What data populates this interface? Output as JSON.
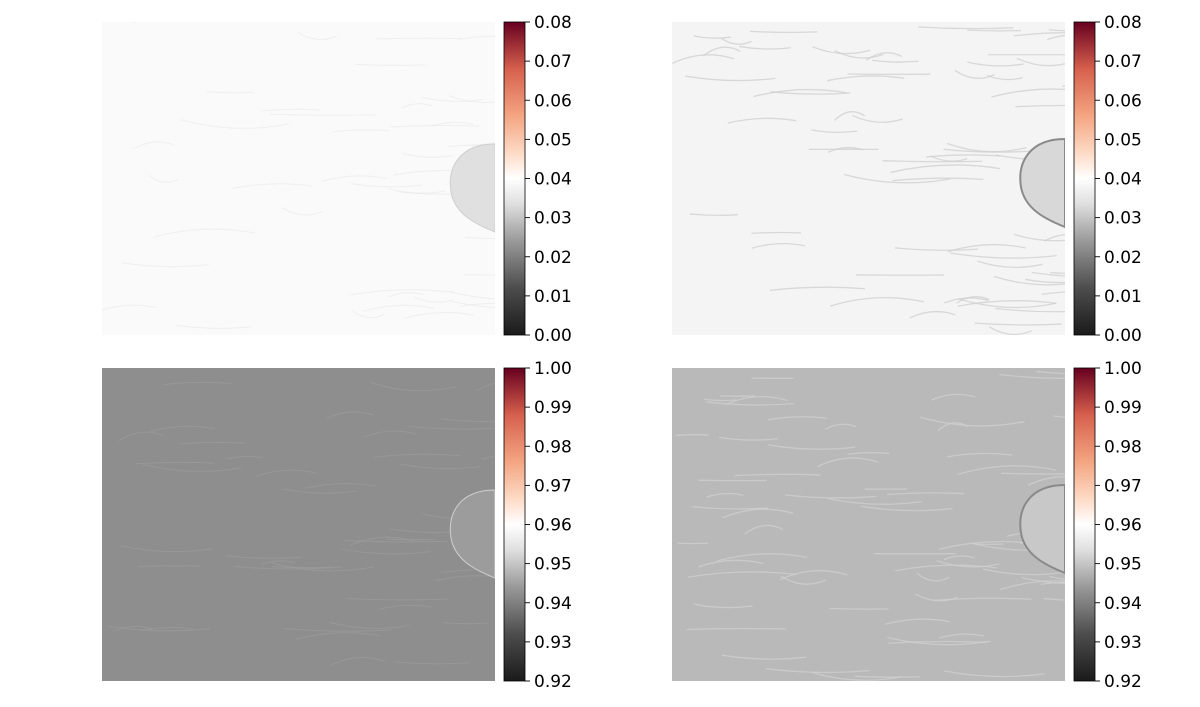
{
  "chart_data": [
    {
      "type": "heatmap",
      "colormap": "RdGy_r",
      "colorbar": {
        "ticks": [
          "0.00",
          "0.01",
          "0.02",
          "0.03",
          "0.04",
          "0.05",
          "0.06",
          "0.07",
          "0.08"
        ],
        "range": [
          0.0,
          0.08
        ]
      },
      "image": {
        "base_color": "#fafafa",
        "texture": "#e6e6e6",
        "object_color": "#e0e0e0"
      }
    },
    {
      "type": "heatmap",
      "colormap": "RdGy_r",
      "colorbar": {
        "ticks": [
          "0.00",
          "0.01",
          "0.02",
          "0.03",
          "0.04",
          "0.05",
          "0.06",
          "0.07",
          "0.08"
        ],
        "range": [
          0.0,
          0.08
        ]
      },
      "image": {
        "base_color": "#f4f4f4",
        "texture": "#cfcfcf",
        "object_color": "#d8d8d8"
      }
    },
    {
      "type": "heatmap",
      "colormap": "RdGy_r",
      "colorbar": {
        "ticks": [
          "0.92",
          "0.93",
          "0.94",
          "0.95",
          "0.96",
          "0.97",
          "0.98",
          "0.99",
          "1.00"
        ],
        "range": [
          0.92,
          1.0
        ]
      },
      "image": {
        "base_color": "#8e8e8e",
        "texture": "#a0a0a0",
        "object_color": "#9c9c9c"
      }
    },
    {
      "type": "heatmap",
      "colormap": "RdGy_r",
      "colorbar": {
        "ticks": [
          "0.92",
          "0.93",
          "0.94",
          "0.95",
          "0.96",
          "0.97",
          "0.98",
          "0.99",
          "1.00"
        ],
        "range": [
          0.92,
          1.0
        ]
      },
      "image": {
        "base_color": "#b9b9b9",
        "texture": "#d0d0d0",
        "object_color": "#c8c8c8"
      }
    }
  ]
}
